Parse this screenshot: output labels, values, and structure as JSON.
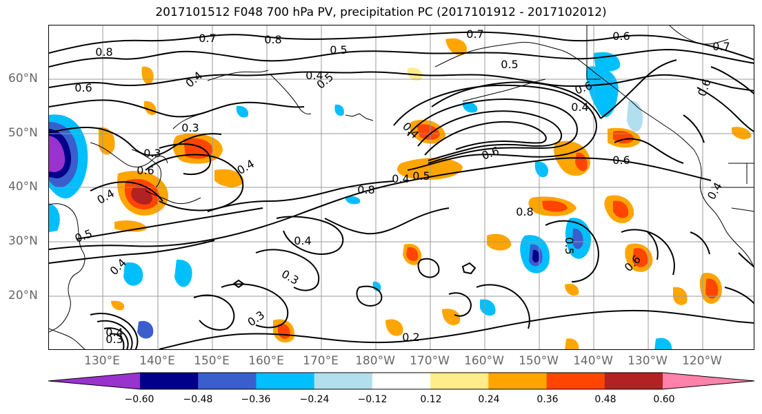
{
  "title": "2017101512 F048 700 hPa PV, precipitation PC (2017101912 - 2017102012)",
  "latitude_labels": [
    "60°N",
    "50°N",
    "40°N",
    "30°N",
    "20°N"
  ],
  "longitude_labels": [
    "130°E",
    "140°E",
    "150°E",
    "160°E",
    "170°E",
    "180°W",
    "170°W",
    "160°W",
    "150°W",
    "140°W",
    "130°W",
    "120°W"
  ],
  "colorbar": {
    "colors": [
      "#9a32cd",
      "#00008b",
      "#3a5fcd",
      "#00bfff",
      "#b2dfee",
      "#ffffff",
      "#ffec8b",
      "#ffa500",
      "#ff4500",
      "#b22222",
      "#ff82ab"
    ],
    "tick_labels": [
      "−0.60",
      "−0.48",
      "−0.36",
      "−0.24",
      "−0.12",
      "0.12",
      "0.24",
      "0.36",
      "0.48",
      "0.60"
    ]
  },
  "contour_labels": [
    "0.7",
    "0.8",
    "0.8",
    "0.7",
    "0.6",
    "0.5",
    "0.5",
    "0.6",
    "0.4",
    "0.5",
    "0.4",
    "0.6",
    "0.4",
    "0.3",
    "0.3",
    "0.4",
    "0.6",
    "0.4",
    "0.6",
    "0.8",
    "0.4",
    "0.6",
    "0.8",
    "0.4",
    "0.5",
    "0.5",
    "0.4",
    "0.3",
    "0.4",
    "0.3",
    "0.4",
    "0.3",
    "0.2",
    "0.5",
    "0.6",
    "0.4",
    "0.6",
    "0.7"
  ]
}
